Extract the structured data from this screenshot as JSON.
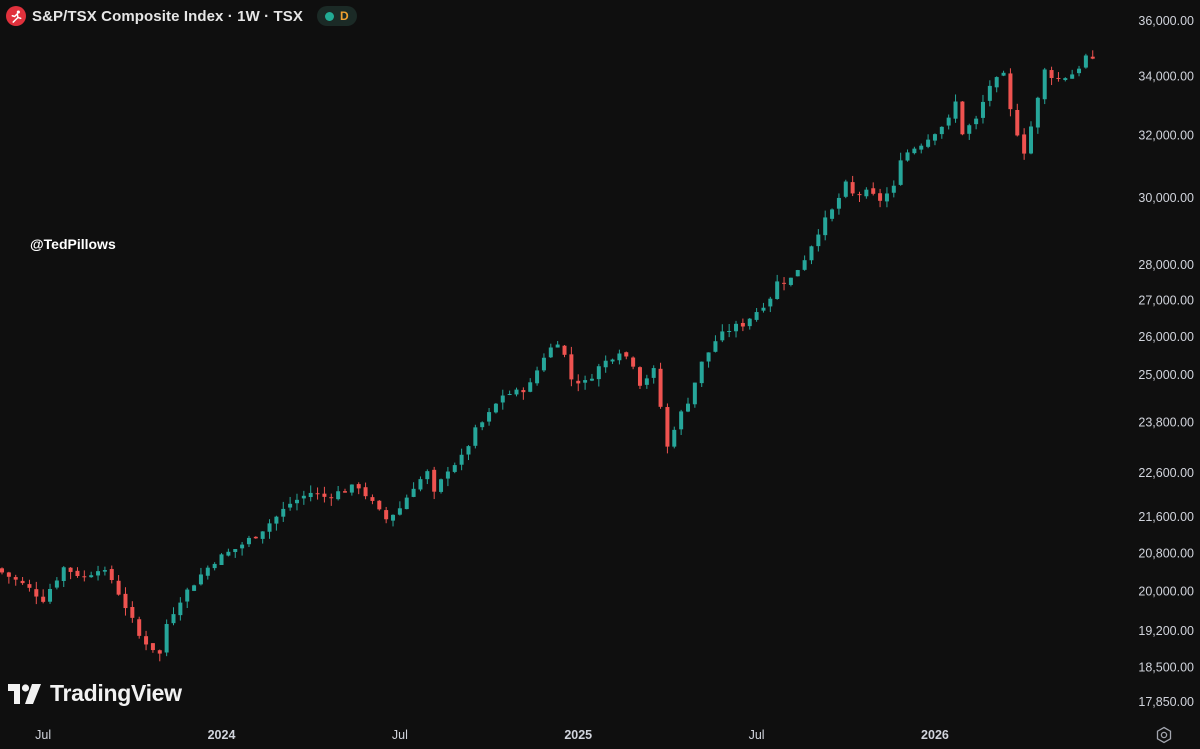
{
  "header": {
    "title": "S&P/TSX Composite Index · 1W · TSX",
    "status_dot_color": "#22ab94",
    "data_label": "D",
    "symbol_icon": "runner-icon"
  },
  "watermark": {
    "handle": "@TedPillows",
    "brand": "TradingView"
  },
  "colors": {
    "up": "#26a69a",
    "down": "#ef5350",
    "background": "#0f0f0f",
    "axis_text": "#d1d4dc"
  },
  "chart_data": {
    "type": "candlestick",
    "timeframe": "1W",
    "y_scale": "log",
    "ylim": [
      17500,
      36400
    ],
    "y_ticks": [
      {
        "value": 36000,
        "label": "36,000.00"
      },
      {
        "value": 34000,
        "label": "34,000.00"
      },
      {
        "value": 32000,
        "label": "32,000.00"
      },
      {
        "value": 30000,
        "label": "30,000.00"
      },
      {
        "value": 28000,
        "label": "28,000.00"
      },
      {
        "value": 27000,
        "label": "27,000.00"
      },
      {
        "value": 26000,
        "label": "26,000.00"
      },
      {
        "value": 25000,
        "label": "25,000.00"
      },
      {
        "value": 23800,
        "label": "23,800.00"
      },
      {
        "value": 22600,
        "label": "22,600.00"
      },
      {
        "value": 21600,
        "label": "21,600.00"
      },
      {
        "value": 20800,
        "label": "20,800.00"
      },
      {
        "value": 20000,
        "label": "20,000.00"
      },
      {
        "value": 19200,
        "label": "19,200.00"
      },
      {
        "value": 18500,
        "label": "18,500.00"
      },
      {
        "value": 17850,
        "label": "17,850.00"
      }
    ],
    "x_ticks": [
      {
        "index": 6,
        "label": "Jul",
        "bold": false
      },
      {
        "index": 32,
        "label": "2024",
        "bold": true
      },
      {
        "index": 58,
        "label": "Jul",
        "bold": false
      },
      {
        "index": 84,
        "label": "2025",
        "bold": true
      },
      {
        "index": 110,
        "label": "Jul",
        "bold": false
      },
      {
        "index": 136,
        "label": "2026",
        "bold": true
      }
    ],
    "anchors": [
      [
        0,
        20400
      ],
      [
        3,
        20150
      ],
      [
        6,
        19850
      ],
      [
        9,
        20500
      ],
      [
        12,
        20300
      ],
      [
        14,
        20500
      ],
      [
        16,
        20250
      ],
      [
        18,
        19700
      ],
      [
        20,
        19100
      ],
      [
        23,
        18750
      ],
      [
        24,
        19350
      ],
      [
        26,
        19850
      ],
      [
        29,
        20350
      ],
      [
        31,
        20650
      ],
      [
        34,
        20900
      ],
      [
        37,
        21200
      ],
      [
        40,
        21600
      ],
      [
        42,
        21900
      ],
      [
        45,
        22150
      ],
      [
        47,
        22050
      ],
      [
        50,
        22200
      ],
      [
        52,
        22300
      ],
      [
        55,
        21700
      ],
      [
        56,
        21550
      ],
      [
        58,
        21800
      ],
      [
        60,
        22300
      ],
      [
        62,
        22600
      ],
      [
        63,
        22100
      ],
      [
        65,
        22700
      ],
      [
        67,
        22950
      ],
      [
        69,
        23600
      ],
      [
        71,
        24000
      ],
      [
        73,
        24500
      ],
      [
        75,
        24550
      ],
      [
        77,
        24750
      ],
      [
        79,
        25500
      ],
      [
        81,
        25900
      ],
      [
        82,
        25500
      ],
      [
        83,
        24900
      ],
      [
        85,
        24800
      ],
      [
        87,
        25200
      ],
      [
        89,
        25500
      ],
      [
        90,
        25650
      ],
      [
        92,
        25300
      ],
      [
        93,
        24800
      ],
      [
        95,
        25100
      ],
      [
        96,
        24200
      ],
      [
        97,
        23200
      ],
      [
        98,
        23700
      ],
      [
        100,
        24350
      ],
      [
        102,
        25300
      ],
      [
        104,
        25900
      ],
      [
        106,
        26200
      ],
      [
        108,
        26350
      ],
      [
        110,
        26700
      ],
      [
        112,
        27100
      ],
      [
        113,
        27500
      ],
      [
        115,
        27600
      ],
      [
        117,
        28200
      ],
      [
        119,
        29000
      ],
      [
        121,
        29600
      ],
      [
        123,
        30400
      ],
      [
        124,
        30100
      ],
      [
        126,
        30150
      ],
      [
        128,
        29950
      ],
      [
        130,
        30300
      ],
      [
        131,
        31300
      ],
      [
        133,
        31600
      ],
      [
        135,
        31900
      ],
      [
        136,
        32150
      ],
      [
        138,
        32500
      ],
      [
        139,
        33100
      ],
      [
        140,
        32100
      ],
      [
        142,
        32500
      ],
      [
        144,
        33700
      ],
      [
        146,
        34000
      ],
      [
        147,
        32800
      ],
      [
        148,
        32100
      ],
      [
        149,
        31500
      ],
      [
        150,
        32300
      ],
      [
        151,
        33200
      ],
      [
        152,
        34200
      ],
      [
        154,
        33900
      ],
      [
        156,
        34100
      ],
      [
        157,
        34350
      ],
      [
        158,
        34700
      ],
      [
        159,
        34500
      ]
    ],
    "candles": 160,
    "first_x": 2,
    "spacing": 6.86,
    "body_width": 4
  }
}
